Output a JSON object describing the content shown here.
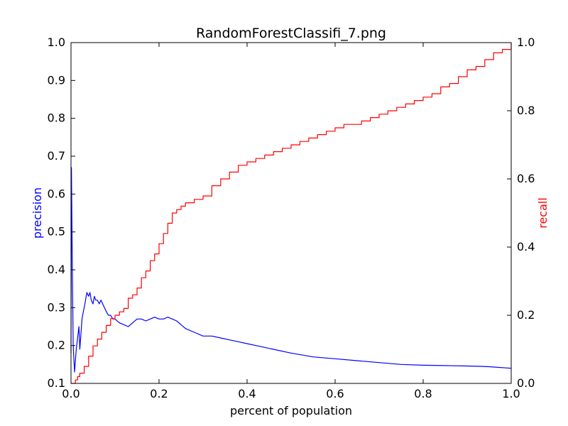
{
  "chart_data": {
    "type": "line",
    "title": "RandomForestClassifi_7.png",
    "xlabel": "percent of population",
    "ylabel_left": "precision",
    "ylabel_right": "recall",
    "xlim": [
      0.0,
      1.0
    ],
    "ylim_left": [
      0.1,
      1.0
    ],
    "ylim_right": [
      0.0,
      1.0
    ],
    "x_ticks": [
      "0.0",
      "0.2",
      "0.4",
      "0.6",
      "0.8",
      "1.0"
    ],
    "y_left_ticks": [
      "0.1",
      "0.2",
      "0.3",
      "0.4",
      "0.5",
      "0.6",
      "0.7",
      "0.8",
      "0.9",
      "1.0"
    ],
    "y_right_ticks": [
      "0.0",
      "0.2",
      "0.4",
      "0.6",
      "0.8",
      "1.0"
    ],
    "grid": false,
    "legend": "none",
    "series": [
      {
        "axis": "left",
        "color": "#0000ff",
        "x": [
          0.0,
          0.001,
          0.003,
          0.005,
          0.008,
          0.012,
          0.015,
          0.018,
          0.02,
          0.022,
          0.025,
          0.028,
          0.03,
          0.033,
          0.036,
          0.04,
          0.043,
          0.046,
          0.05,
          0.053,
          0.056,
          0.06,
          0.064,
          0.068,
          0.072,
          0.076,
          0.08,
          0.085,
          0.09,
          0.095,
          0.1,
          0.11,
          0.12,
          0.13,
          0.14,
          0.15,
          0.16,
          0.17,
          0.18,
          0.19,
          0.2,
          0.21,
          0.22,
          0.23,
          0.24,
          0.25,
          0.26,
          0.28,
          0.3,
          0.32,
          0.34,
          0.36,
          0.38,
          0.4,
          0.42,
          0.44,
          0.46,
          0.5,
          0.55,
          0.6,
          0.65,
          0.7,
          0.75,
          0.8,
          0.85,
          0.9,
          0.93,
          0.95,
          1.0
        ],
        "y": [
          0.18,
          0.67,
          0.4,
          0.2,
          0.13,
          0.19,
          0.22,
          0.25,
          0.19,
          0.22,
          0.27,
          0.29,
          0.3,
          0.32,
          0.34,
          0.33,
          0.34,
          0.32,
          0.31,
          0.33,
          0.32,
          0.32,
          0.31,
          0.32,
          0.31,
          0.3,
          0.29,
          0.28,
          0.28,
          0.27,
          0.27,
          0.26,
          0.255,
          0.25,
          0.26,
          0.27,
          0.27,
          0.265,
          0.27,
          0.275,
          0.27,
          0.27,
          0.275,
          0.27,
          0.265,
          0.255,
          0.245,
          0.235,
          0.225,
          0.225,
          0.22,
          0.215,
          0.21,
          0.205,
          0.2,
          0.195,
          0.19,
          0.18,
          0.17,
          0.165,
          0.16,
          0.155,
          0.15,
          0.148,
          0.147,
          0.146,
          0.145,
          0.144,
          0.14
        ]
      },
      {
        "axis": "right",
        "color": "#ff0000",
        "x": [
          0.0,
          0.01,
          0.015,
          0.02,
          0.03,
          0.04,
          0.05,
          0.06,
          0.07,
          0.08,
          0.09,
          0.1,
          0.11,
          0.12,
          0.13,
          0.14,
          0.15,
          0.16,
          0.17,
          0.18,
          0.19,
          0.2,
          0.21,
          0.22,
          0.23,
          0.24,
          0.25,
          0.26,
          0.28,
          0.3,
          0.32,
          0.34,
          0.36,
          0.38,
          0.4,
          0.42,
          0.44,
          0.46,
          0.48,
          0.5,
          0.52,
          0.54,
          0.56,
          0.58,
          0.6,
          0.62,
          0.64,
          0.66,
          0.68,
          0.7,
          0.72,
          0.74,
          0.76,
          0.78,
          0.8,
          0.82,
          0.84,
          0.86,
          0.88,
          0.9,
          0.92,
          0.94,
          0.96,
          0.98,
          1.0
        ],
        "y": [
          0.0,
          0.01,
          0.02,
          0.03,
          0.05,
          0.08,
          0.11,
          0.13,
          0.15,
          0.17,
          0.19,
          0.2,
          0.21,
          0.22,
          0.25,
          0.26,
          0.28,
          0.31,
          0.33,
          0.36,
          0.38,
          0.41,
          0.44,
          0.47,
          0.5,
          0.51,
          0.52,
          0.53,
          0.54,
          0.55,
          0.58,
          0.6,
          0.62,
          0.64,
          0.65,
          0.66,
          0.67,
          0.68,
          0.69,
          0.7,
          0.71,
          0.72,
          0.73,
          0.74,
          0.75,
          0.76,
          0.76,
          0.77,
          0.78,
          0.79,
          0.8,
          0.81,
          0.82,
          0.83,
          0.84,
          0.85,
          0.87,
          0.88,
          0.9,
          0.92,
          0.93,
          0.95,
          0.97,
          0.98,
          1.0
        ]
      }
    ]
  }
}
